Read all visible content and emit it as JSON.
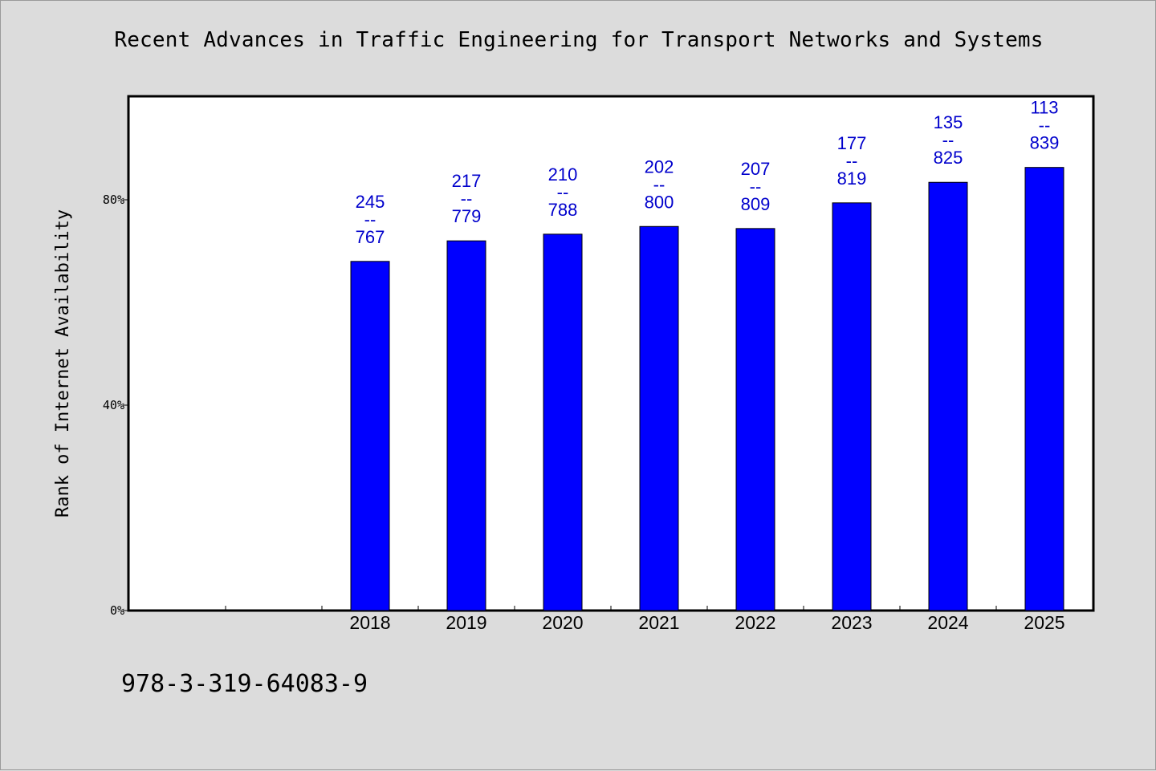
{
  "chart_data": {
    "type": "bar",
    "title": "Recent Advances in Traffic Engineering for Transport Networks and Systems",
    "xlabel": "",
    "ylabel": "Rank of Internet Availability",
    "categories": [
      "",
      "",
      "2018",
      "2019",
      "2020",
      "2021",
      "2022",
      "2023",
      "2024",
      "2025"
    ],
    "values": [
      null,
      null,
      68.0,
      72.0,
      73.3,
      74.8,
      74.4,
      79.4,
      83.4,
      86.3
    ],
    "labels": [
      null,
      null,
      {
        "top": "245",
        "sep": "--",
        "bottom": "767"
      },
      {
        "top": "217",
        "sep": "--",
        "bottom": "779"
      },
      {
        "top": "210",
        "sep": "--",
        "bottom": "788"
      },
      {
        "top": "202",
        "sep": "--",
        "bottom": "800"
      },
      {
        "top": "207",
        "sep": "--",
        "bottom": "809"
      },
      {
        "top": "177",
        "sep": "--",
        "bottom": "819"
      },
      {
        "top": "135",
        "sep": "--",
        "bottom": "825"
      },
      {
        "top": "113",
        "sep": "--",
        "bottom": "839"
      }
    ],
    "ylim": [
      0,
      100
    ],
    "yticks": [
      0,
      40,
      80
    ],
    "ytick_labels": [
      "0%",
      "40%",
      "80%"
    ],
    "bar_color": "#0000ff",
    "label_color": "#0000cc",
    "grid": false
  },
  "footer": {
    "isbn": "978-3-319-64083-9"
  }
}
